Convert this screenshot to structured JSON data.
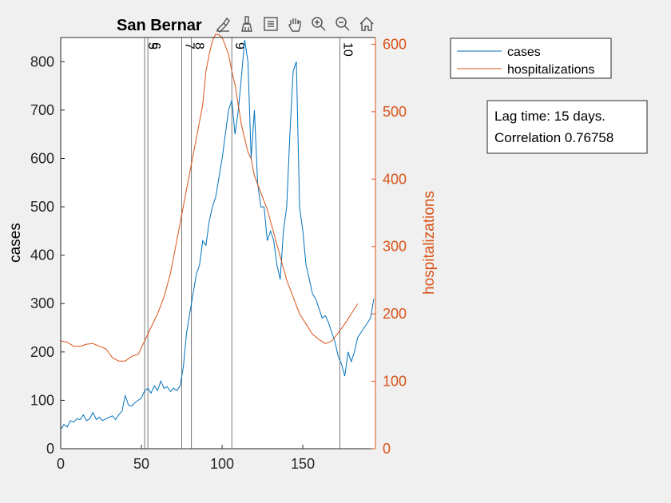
{
  "chart_data": {
    "type": "line",
    "title": "San Bernar",
    "xlabel": "",
    "ylabel_left": "cases",
    "ylabel_right": "hospitalizations",
    "xlim": [
      0,
      195
    ],
    "ylim_left": [
      0,
      850
    ],
    "ylim_right": [
      0,
      610
    ],
    "x_ticks": [
      0,
      50,
      100,
      150
    ],
    "y_ticks_left": [
      0,
      100,
      200,
      300,
      400,
      500,
      600,
      700,
      800
    ],
    "y_ticks_right": [
      0,
      100,
      200,
      300,
      400,
      500,
      600
    ],
    "colors": {
      "cases": "#0072BD",
      "hospitalizations": "#D95319",
      "axis": "#262626",
      "vline": "#555555"
    },
    "series": [
      {
        "name": "cases",
        "axis": "left",
        "x": [
          0,
          2,
          4,
          6,
          8,
          10,
          12,
          14,
          16,
          18,
          20,
          22,
          24,
          26,
          28,
          30,
          32,
          34,
          36,
          38,
          40,
          42,
          44,
          46,
          48,
          50,
          52,
          54,
          56,
          58,
          60,
          62,
          64,
          66,
          68,
          70,
          72,
          74,
          76,
          78,
          80,
          82,
          84,
          86,
          88,
          90,
          92,
          94,
          96,
          98,
          100,
          102,
          104,
          106,
          108,
          110,
          112,
          114,
          116,
          118,
          120,
          122,
          124,
          126,
          128,
          130,
          132,
          134,
          136,
          138,
          140,
          142,
          144,
          146,
          148,
          150,
          152,
          154,
          156,
          158,
          160,
          162,
          164,
          166,
          168,
          170,
          172,
          174,
          176,
          178,
          180,
          182,
          184,
          186,
          188,
          190,
          192,
          194
        ],
        "values": [
          40,
          50,
          45,
          58,
          55,
          62,
          60,
          70,
          58,
          62,
          75,
          60,
          65,
          58,
          62,
          65,
          68,
          60,
          70,
          78,
          110,
          90,
          88,
          95,
          100,
          105,
          120,
          125,
          115,
          130,
          120,
          140,
          125,
          128,
          118,
          125,
          120,
          130,
          170,
          240,
          280,
          320,
          360,
          380,
          430,
          420,
          470,
          500,
          520,
          560,
          600,
          650,
          700,
          720,
          650,
          700,
          770,
          845,
          800,
          600,
          700,
          550,
          500,
          500,
          430,
          450,
          430,
          380,
          350,
          450,
          500,
          650,
          780,
          800,
          500,
          450,
          380,
          350,
          320,
          310,
          290,
          270,
          275,
          260,
          240,
          220,
          190,
          175,
          150,
          200,
          180,
          200,
          230,
          240,
          250,
          260,
          270,
          310
        ]
      },
      {
        "name": "hospitalizations",
        "axis": "right",
        "x": [
          0,
          4,
          8,
          12,
          16,
          20,
          24,
          28,
          32,
          36,
          40,
          44,
          48,
          52,
          56,
          60,
          64,
          68,
          72,
          76,
          80,
          84,
          88,
          90,
          92,
          94,
          96,
          98,
          100,
          102,
          104,
          106,
          108,
          110,
          112,
          114,
          116,
          118,
          120,
          124,
          128,
          132,
          136,
          140,
          144,
          148,
          152,
          156,
          160,
          164,
          168,
          172,
          176,
          180,
          184
        ],
        "values": [
          160,
          158,
          152,
          152,
          155,
          156,
          152,
          148,
          135,
          130,
          130,
          137,
          140,
          160,
          180,
          200,
          225,
          260,
          310,
          360,
          410,
          460,
          510,
          560,
          585,
          605,
          615,
          614,
          610,
          598,
          585,
          560,
          540,
          510,
          480,
          460,
          440,
          430,
          405,
          380,
          355,
          320,
          285,
          250,
          225,
          200,
          185,
          170,
          162,
          156,
          160,
          172,
          185,
          200,
          215
        ]
      }
    ],
    "vertical_markers": [
      {
        "label": "5",
        "x": 52
      },
      {
        "label": "6",
        "x": 54
      },
      {
        "label": "7",
        "x": 75
      },
      {
        "label": "8",
        "x": 81
      },
      {
        "label": "9",
        "x": 106
      },
      {
        "label": "10",
        "x": 173
      }
    ]
  },
  "legend": {
    "items": [
      "cases",
      "hospitalizations"
    ]
  },
  "annotation": {
    "line1": "Lag time: 15 days.",
    "line2": "Correlation 0.76758"
  },
  "toolbar": {
    "icons": [
      "data-tip-icon",
      "brush-icon",
      "legend-toggle-icon",
      "pan-hand-icon",
      "zoom-in-icon",
      "zoom-out-icon",
      "home-icon"
    ]
  }
}
